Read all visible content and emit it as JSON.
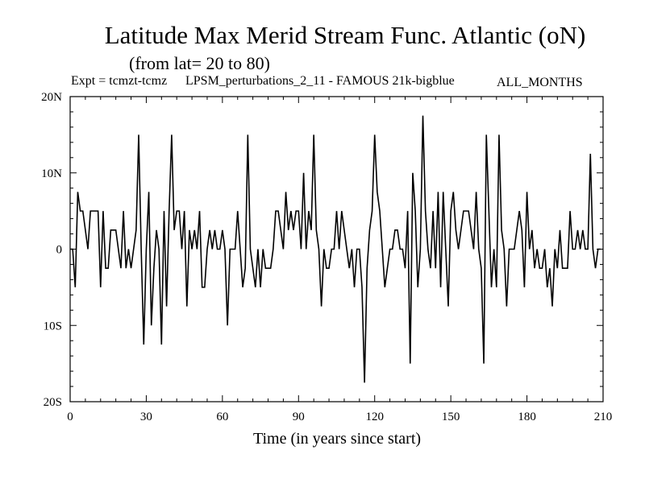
{
  "chart_data": {
    "type": "line",
    "title": "Latitude Max Merid Stream Func. Atlantic (oN)",
    "subtitle": "(from lat= 20 to 80)",
    "expt_prefix": "Expt = tcmzt-tcmz",
    "expt_name": "LPSM_perturbations_2_11 - FAMOUS 21k-bigblue",
    "period": "ALL_MONTHS",
    "xlabel": "Time (in years since start)",
    "ylabel": "",
    "xlim": [
      0,
      210
    ],
    "ylim": [
      -20,
      20
    ],
    "x_ticks": [
      0,
      30,
      60,
      90,
      120,
      150,
      180,
      210
    ],
    "x_tick_labels": [
      "0",
      "30",
      "60",
      "90",
      "120",
      "150",
      "180",
      "210"
    ],
    "y_ticks": [
      20,
      10,
      0,
      -10,
      -20
    ],
    "y_tick_labels": [
      "20N",
      "10N",
      "0",
      "10S",
      "20S"
    ],
    "series": [
      {
        "name": "latitude max",
        "values": [
          0,
          0,
          -5,
          7.5,
          5,
          5,
          2.5,
          0,
          5,
          5,
          5,
          5,
          -5,
          5,
          -2.5,
          -2.5,
          2.5,
          2.5,
          2.5,
          0,
          -2.5,
          5,
          -2.5,
          0,
          -2.5,
          0,
          2.5,
          15,
          0,
          -12.5,
          0,
          7.5,
          -10,
          -2.5,
          2.5,
          0,
          -12.5,
          5,
          -7.5,
          5,
          15,
          2.5,
          5,
          5,
          0,
          5,
          -7.5,
          2.5,
          0,
          2.5,
          0,
          5,
          -5,
          -5,
          0,
          2.5,
          0,
          2.5,
          0,
          0,
          2.5,
          0,
          -10,
          0,
          0,
          0,
          5,
          0,
          -5,
          -2.5,
          15,
          0,
          -2.5,
          -5,
          0,
          -5,
          0,
          -2.5,
          -2.5,
          -2.5,
          0,
          5,
          5,
          2.5,
          0,
          7.5,
          2.5,
          5,
          2.5,
          5,
          5,
          0,
          10,
          0,
          5,
          2.5,
          15,
          2.5,
          0,
          -7.5,
          0,
          -2.5,
          -2.5,
          0,
          0,
          5,
          0,
          5,
          2.5,
          0,
          -2.5,
          0,
          -5,
          0,
          0,
          -5,
          -17.5,
          -2.5,
          2.5,
          5,
          15,
          7.5,
          5,
          0,
          -5,
          -2.5,
          0,
          0,
          2.5,
          2.5,
          0,
          0,
          -2.5,
          5,
          -15,
          10,
          5,
          -5,
          0,
          17.5,
          5,
          0,
          -2.5,
          5,
          -2.5,
          7.5,
          -5,
          7.5,
          0,
          -7.5,
          5,
          7.5,
          2.5,
          0,
          2.5,
          5,
          5,
          5,
          2.5,
          0,
          7.5,
          0,
          -2.5,
          -15,
          15,
          5,
          -5,
          0,
          -5,
          15,
          2.5,
          0,
          -7.5,
          0,
          0,
          0,
          2.5,
          5,
          2.5,
          -5,
          7.5,
          0,
          2.5,
          -2.5,
          0,
          -2.5,
          -2.5,
          0,
          -5,
          -2.5,
          -7.5,
          0,
          -2.5,
          2.5,
          -2.5,
          -2.5,
          -2.5,
          5,
          0,
          0,
          2.5,
          0,
          2.5,
          0,
          0,
          12.5,
          0,
          -2.5,
          0,
          0
        ]
      }
    ]
  }
}
